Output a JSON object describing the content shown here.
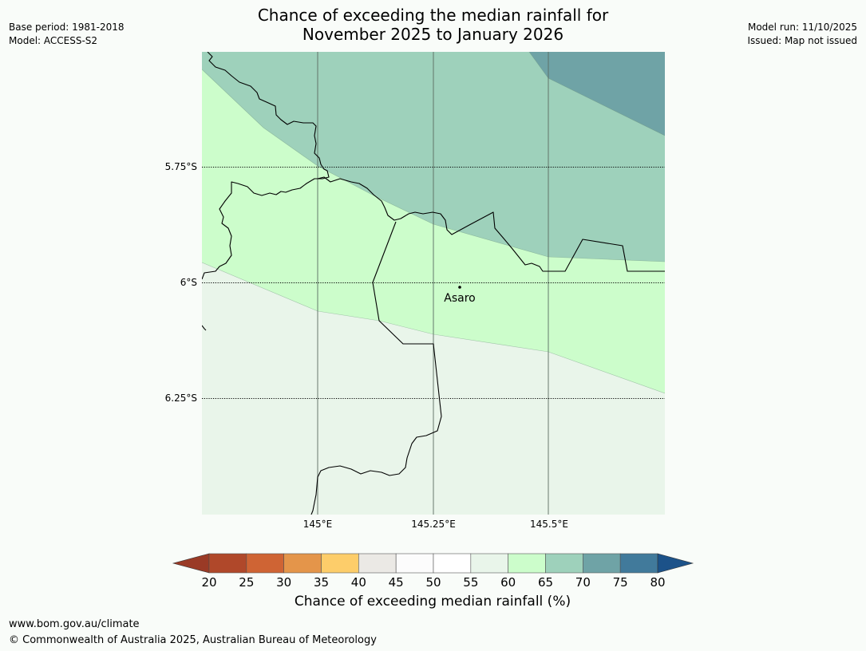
{
  "header": {
    "title_line1": "Chance of exceeding the median rainfall for",
    "title_line2": "November 2025 to January 2026",
    "base_period": "Base period: 1981-2018",
    "model": "Model: ACCESS-S2",
    "model_run": "Model run: 11/10/2025",
    "issued": "Issued: Map not issued"
  },
  "map": {
    "lat_labels": [
      "5.75°S",
      "6°S",
      "6.25°S"
    ],
    "lon_labels": [
      "145°E",
      "145.25°E",
      "145.5°E"
    ],
    "place": "Asaro",
    "colors": {
      "c70_75": "#6fa3a6",
      "c65_70": "#9ed1bb",
      "c60_65": "#ccfdcb",
      "c55_60": "#e9f5ea"
    }
  },
  "colorbar": {
    "title": "Chance of exceeding median rainfall (%)",
    "ticks": [
      "20",
      "25",
      "30",
      "35",
      "40",
      "45",
      "50",
      "55",
      "60",
      "65",
      "70",
      "75",
      "80"
    ],
    "low_extend_color": "#9a3a26",
    "high_extend_color": "#1c5289",
    "bin_colors": [
      "#b0482a",
      "#cf6434",
      "#e4954a",
      "#fdcd6a",
      "#ebe9e5",
      "#fcfcfc",
      "#ffffff",
      "#e9f5ea",
      "#ccfdcb",
      "#9ed1bb",
      "#6fa3a6",
      "#417a9b"
    ]
  },
  "footer": {
    "url": "www.bom.gov.au/climate",
    "copyright": "© Commonwealth of Australia 2025, Australian Bureau of Meteorology"
  }
}
